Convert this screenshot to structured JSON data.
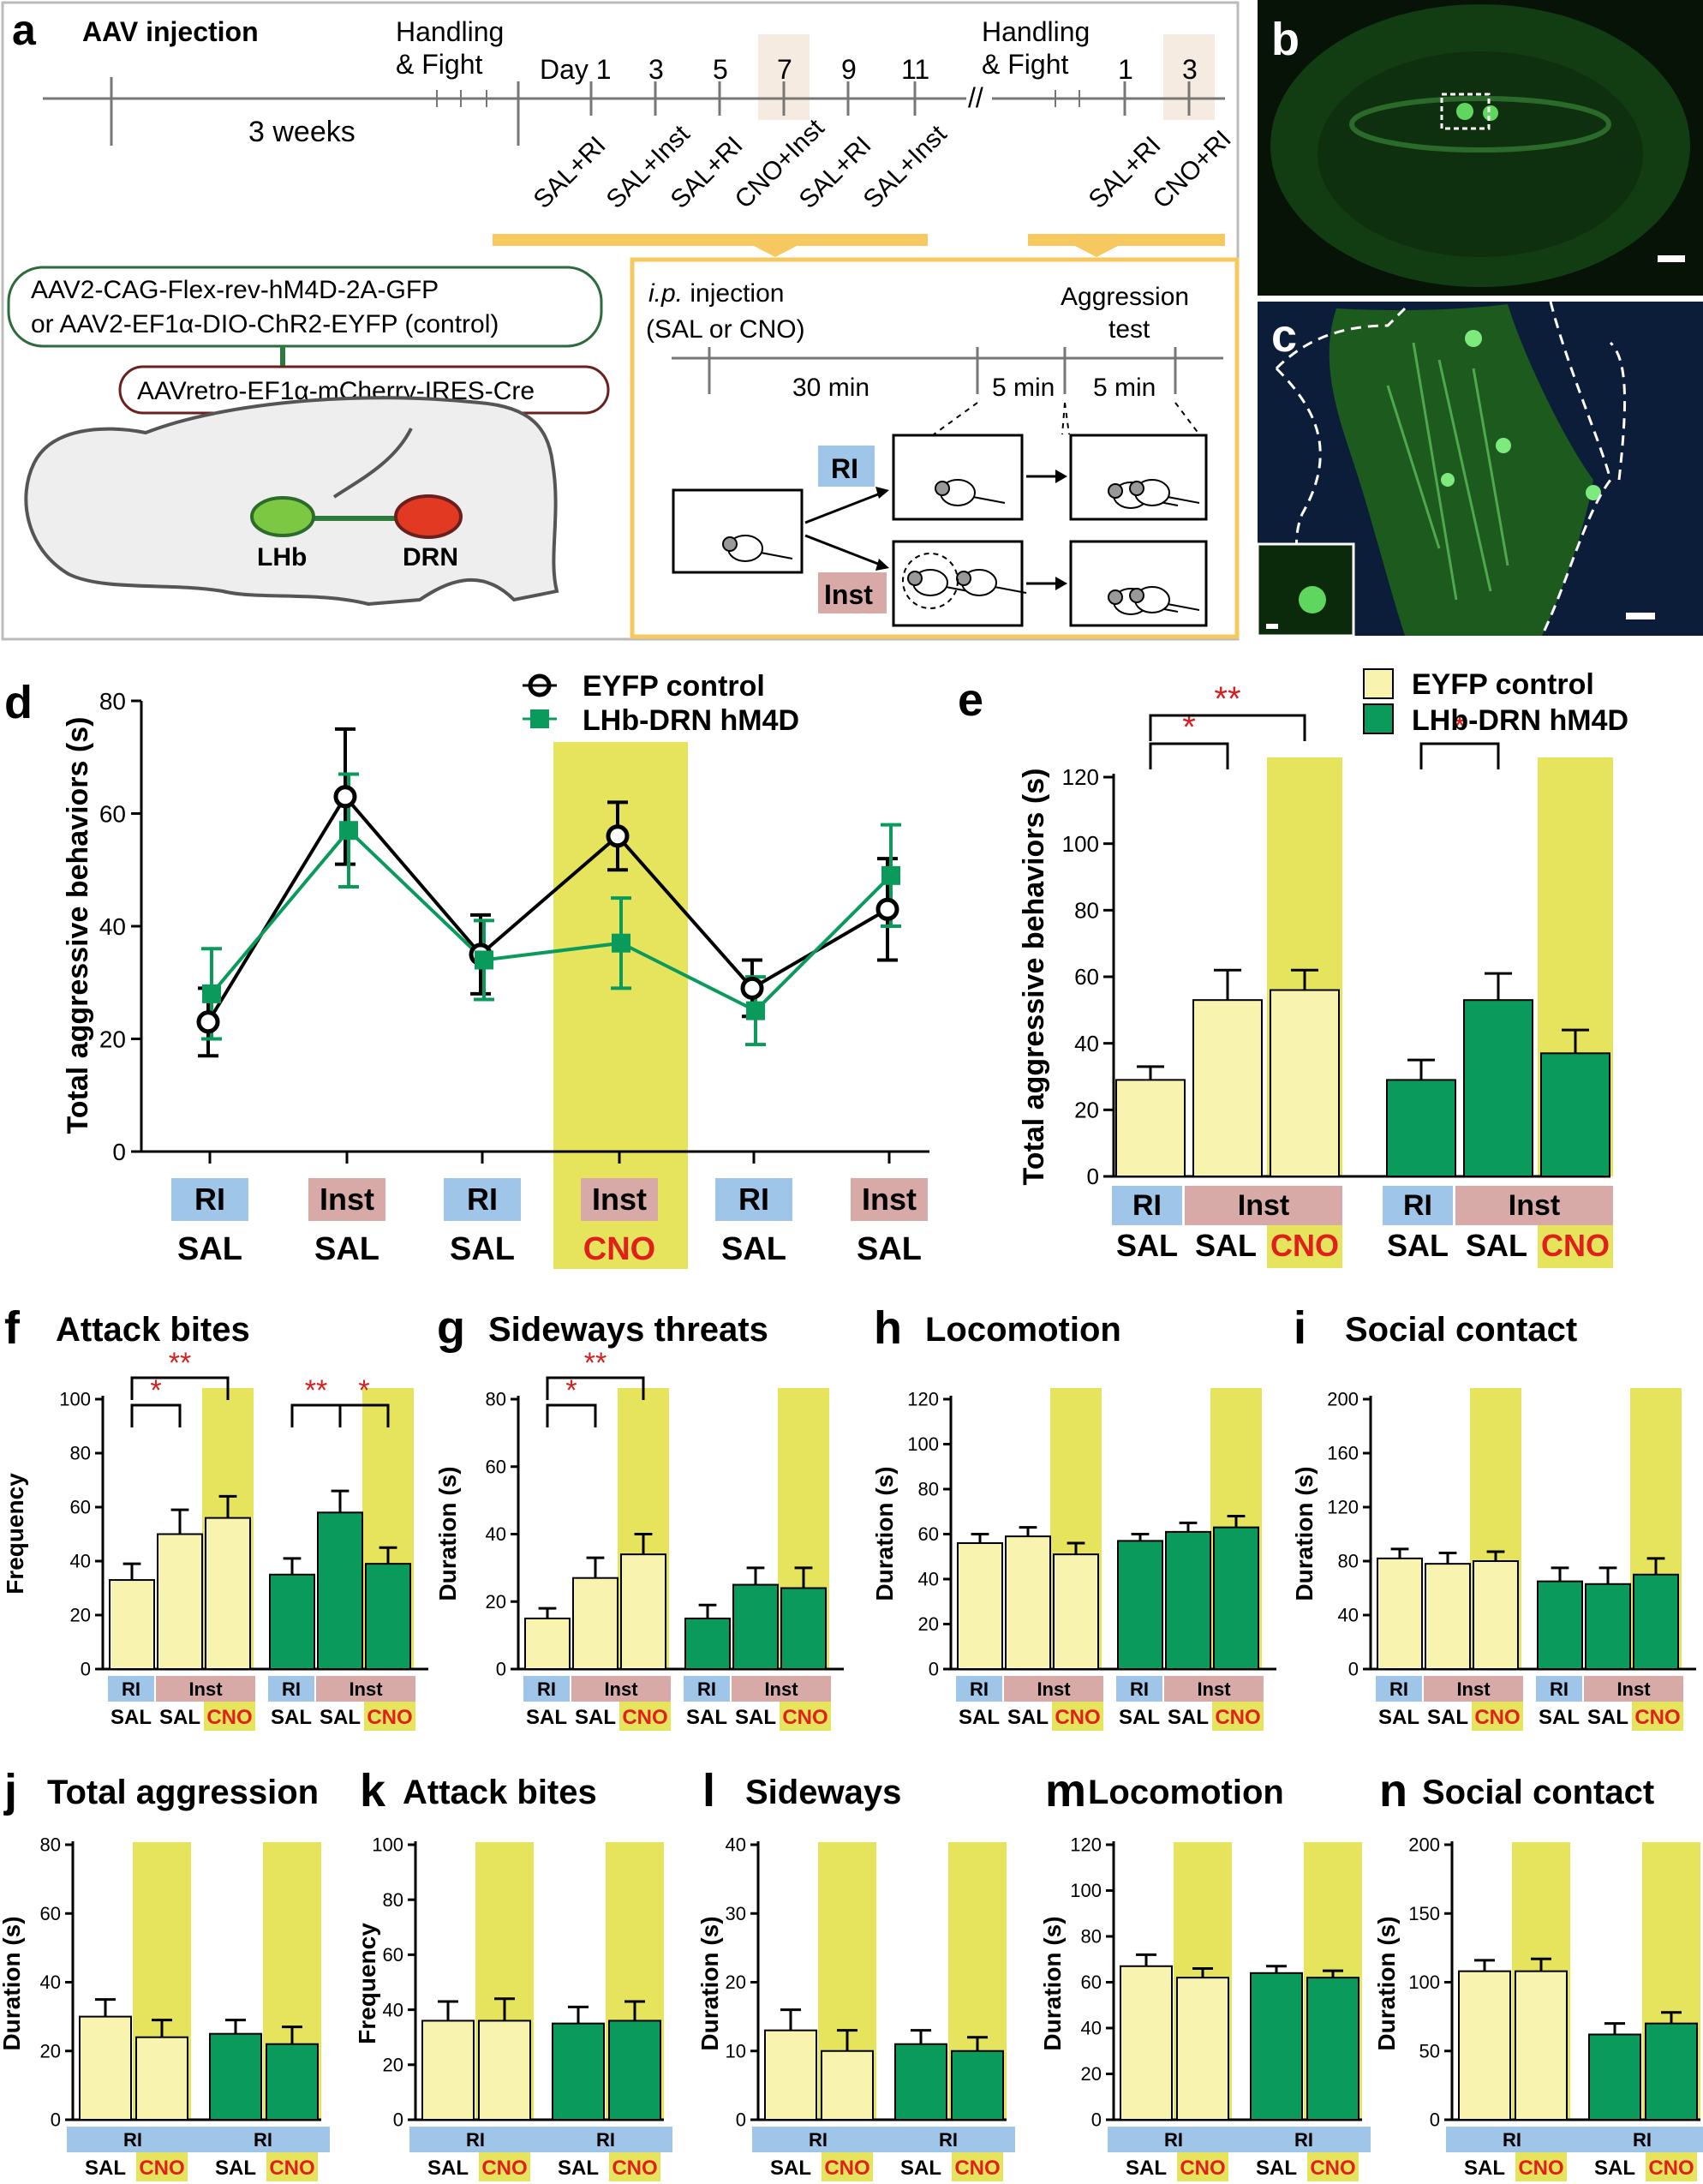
{
  "colors": {
    "control": "#f8f4b0",
    "hm4d": "#0a9a5c",
    "highlight": "#e6e35c",
    "ri": "#9fc5e8",
    "inst": "#d7aaa8",
    "cno": "#e0201b",
    "sig": "#d42020",
    "mouse": "#4a9a4a",
    "panel_bg": "#0b2a0b",
    "boxline": "#f6c85f"
  },
  "panel_a": {
    "letter": "a",
    "aav": "AAV injection",
    "weeks": "3 weeks",
    "handling1": "Handling",
    "fight1": "& Fight",
    "handling2": "Handling",
    "fight2": "& Fight",
    "day": "Day 1",
    "days1": [
      "3",
      "5",
      "7",
      "9",
      "11"
    ],
    "days2": [
      "1",
      "3"
    ],
    "sessions1": [
      "SAL+RI",
      "SAL+Inst",
      "SAL+RI",
      "CNO+Inst",
      "SAL+RI",
      "SAL+Inst"
    ],
    "sessions2": [
      "SAL+RI",
      "CNO+RI"
    ],
    "virus1a": "AAV2-CAG-Flex-rev-hM4D-2A-GFP",
    "virus1b": "or  AAV2-EF1α-DIO-ChR2-EYFP (control)",
    "virus2": "AAVretro-EF1α-mCherry-IRES-Cre",
    "lhb": "LHb",
    "drn": "DRN",
    "ip": "i.p.",
    "ip_rest": " injection",
    "salcno": "(SAL or CNO)",
    "aggr1": "Aggression",
    "aggr2": "test",
    "t30": "30 min",
    "t5a": "5 min",
    "t5b": "5 min",
    "ri": "RI",
    "inst": "Inst"
  },
  "panel_b": {
    "letter": "b"
  },
  "panel_c": {
    "letter": "c"
  },
  "panel_d": {
    "letter": "d",
    "ylabel": "Total aggressive behaviors (s)",
    "legend": [
      "EYFP control",
      "LHb-DRN hM4D"
    ],
    "chart_data": {
      "type": "line",
      "ylim": [
        0,
        80
      ],
      "yticks": [
        0,
        20,
        40,
        60,
        80
      ],
      "categories": [
        "RI SAL",
        "Inst SAL",
        "RI SAL",
        "Inst CNO",
        "RI SAL",
        "Inst SAL"
      ],
      "top_labels": [
        "RI",
        "Inst",
        "RI",
        "Inst",
        "RI",
        "Inst"
      ],
      "bottom_labels": [
        "SAL",
        "SAL",
        "SAL",
        "CNO",
        "SAL",
        "SAL"
      ],
      "series": [
        {
          "name": "EYFP control",
          "values": [
            23,
            63,
            35,
            56,
            29,
            43
          ],
          "err": [
            6,
            12,
            7,
            6,
            5,
            9
          ]
        },
        {
          "name": "LHb-DRN hM4D",
          "values": [
            28,
            57,
            34,
            37,
            25,
            49
          ],
          "err": [
            8,
            10,
            7,
            8,
            6,
            9
          ]
        }
      ],
      "highlight_index": 3
    }
  },
  "panel_e": {
    "letter": "e",
    "ylabel": "Total aggressive behaviors (s)",
    "legend": [
      "EYFP control",
      "LHb-DRN hM4D"
    ],
    "chart_data": {
      "type": "bar",
      "ylim": [
        0,
        120
      ],
      "yticks": [
        0,
        20,
        40,
        60,
        80,
        100,
        120
      ],
      "groups": [
        {
          "name": "EYFP control",
          "values": [
            29,
            53,
            56
          ],
          "err": [
            4,
            9,
            6
          ]
        },
        {
          "name": "LHb-DRN hM4D",
          "values": [
            29,
            53,
            37
          ],
          "err": [
            6,
            8,
            7
          ]
        }
      ],
      "top_labels": [
        "RI",
        "Inst"
      ],
      "bottom_labels": [
        "SAL",
        "SAL",
        "CNO"
      ],
      "sig": [
        {
          "g": 0,
          "a": 0,
          "b": 1,
          "text": "*"
        },
        {
          "g": 0,
          "a": 0,
          "b": 2,
          "text": "**"
        },
        {
          "g": 1,
          "a": 0,
          "b": 1,
          "text": "*"
        }
      ]
    }
  },
  "small_row1": [
    {
      "letter": "f",
      "title": "Attack bites",
      "ylabel": "Frequency",
      "ylim": [
        0,
        100
      ],
      "yticks": [
        0,
        20,
        40,
        60,
        80,
        100
      ],
      "values": [
        [
          33,
          50,
          56
        ],
        [
          35,
          58,
          39
        ]
      ],
      "err": [
        [
          6,
          9,
          8
        ],
        [
          6,
          8,
          6
        ]
      ],
      "sig": [
        {
          "g": 0,
          "a": 0,
          "b": 1,
          "text": "*"
        },
        {
          "g": 0,
          "a": 0,
          "b": 2,
          "text": "**"
        },
        {
          "g": 1,
          "a": 0,
          "b": 1,
          "text": "**"
        },
        {
          "g": 1,
          "a": 1,
          "b": 2,
          "text": "*"
        }
      ]
    },
    {
      "letter": "g",
      "title": "Sideways threats",
      "ylabel": "Duration (s)",
      "ylim": [
        0,
        80
      ],
      "yticks": [
        0,
        20,
        40,
        60,
        80
      ],
      "values": [
        [
          15,
          27,
          34
        ],
        [
          15,
          25,
          24
        ]
      ],
      "err": [
        [
          3,
          6,
          6
        ],
        [
          4,
          5,
          6
        ]
      ],
      "sig": [
        {
          "g": 0,
          "a": 0,
          "b": 1,
          "text": "*"
        },
        {
          "g": 0,
          "a": 0,
          "b": 2,
          "text": "**"
        }
      ]
    },
    {
      "letter": "h",
      "title": "Locomotion",
      "ylabel": "Duration (s)",
      "ylim": [
        0,
        120
      ],
      "yticks": [
        0,
        20,
        40,
        60,
        80,
        100,
        120
      ],
      "values": [
        [
          56,
          59,
          51
        ],
        [
          57,
          61,
          63
        ]
      ],
      "err": [
        [
          4,
          4,
          5
        ],
        [
          3,
          4,
          5
        ]
      ],
      "sig": []
    },
    {
      "letter": "i",
      "title": "Social contact",
      "ylabel": "Duration (s)",
      "ylim": [
        0,
        200
      ],
      "yticks": [
        0,
        40,
        80,
        120,
        160,
        200
      ],
      "values": [
        [
          82,
          78,
          80
        ],
        [
          65,
          63,
          70
        ]
      ],
      "err": [
        [
          7,
          8,
          7
        ],
        [
          10,
          12,
          12
        ]
      ],
      "sig": []
    }
  ],
  "small_row2": [
    {
      "letter": "j",
      "title": "Total aggression",
      "ylabel": "Duration (s)",
      "ylim": [
        0,
        80
      ],
      "yticks": [
        0,
        20,
        40,
        60,
        80
      ],
      "values": [
        [
          30,
          24
        ],
        [
          25,
          22
        ]
      ],
      "err": [
        [
          5,
          5
        ],
        [
          4,
          5
        ]
      ]
    },
    {
      "letter": "k",
      "title": "Attack bites",
      "ylabel": "Frequency",
      "ylim": [
        0,
        100
      ],
      "yticks": [
        0,
        20,
        40,
        60,
        80,
        100
      ],
      "values": [
        [
          36,
          36
        ],
        [
          35,
          36
        ]
      ],
      "err": [
        [
          7,
          8
        ],
        [
          6,
          7
        ]
      ]
    },
    {
      "letter": "l",
      "title": "Sideways",
      "ylabel": "Duration (s)",
      "ylim": [
        0,
        40
      ],
      "yticks": [
        0,
        10,
        20,
        30,
        40
      ],
      "values": [
        [
          13,
          10
        ],
        [
          11,
          10
        ]
      ],
      "err": [
        [
          3,
          3
        ],
        [
          2,
          2
        ]
      ]
    },
    {
      "letter": "m",
      "title": "Locomotion",
      "ylabel": "Duration (s)",
      "ylim": [
        0,
        120
      ],
      "yticks": [
        0,
        20,
        40,
        60,
        80,
        100,
        120
      ],
      "values": [
        [
          67,
          62
        ],
        [
          64,
          62
        ]
      ],
      "err": [
        [
          5,
          4
        ],
        [
          3,
          3
        ]
      ]
    },
    {
      "letter": "n",
      "title": "Social contact",
      "ylabel": "Duration (s)",
      "ylim": [
        0,
        200
      ],
      "yticks": [
        0,
        50,
        100,
        150,
        200
      ],
      "values": [
        [
          108,
          108
        ],
        [
          62,
          70
        ]
      ],
      "err": [
        [
          8,
          9
        ],
        [
          8,
          8
        ]
      ]
    }
  ],
  "xlab": {
    "ri": "RI",
    "inst": "Inst",
    "sal": "SAL",
    "cno": "CNO"
  }
}
